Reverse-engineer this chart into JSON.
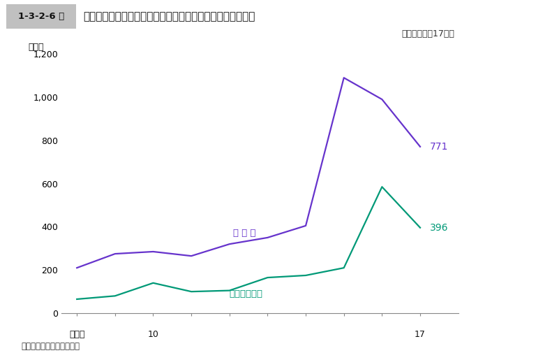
{
  "years": [
    8,
    9,
    10,
    11,
    12,
    13,
    14,
    15,
    16,
    17
  ],
  "shusshiho": [
    210,
    275,
    285,
    265,
    320,
    350,
    405,
    1090,
    990,
    771
  ],
  "kashikin": [
    65,
    80,
    140,
    100,
    105,
    165,
    175,
    210,
    585,
    396
  ],
  "shusshiho_color": "#6633cc",
  "kashikin_color": "#009977",
  "title_box_label": "1-3-2-6 図",
  "title_text": "出資法違反・貸金業規制法違反の検察庁新規受理人員の推移",
  "subtitle": "（平成８年～17年）",
  "ylabel": "（人）",
  "note": "注　検察統計年報による。",
  "shusshiho_label": "出 資 法",
  "kashikin_label": "貸金業規制法",
  "shusshiho_end_value": "771",
  "kashikin_end_value": "396",
  "ylim": [
    0,
    1200
  ],
  "yticks": [
    0,
    200,
    400,
    600,
    800,
    1000,
    1200
  ],
  "background_color": "#ffffff",
  "title_bg_color": "#e0e0e0",
  "title_box_bg": "#c0c0c0"
}
